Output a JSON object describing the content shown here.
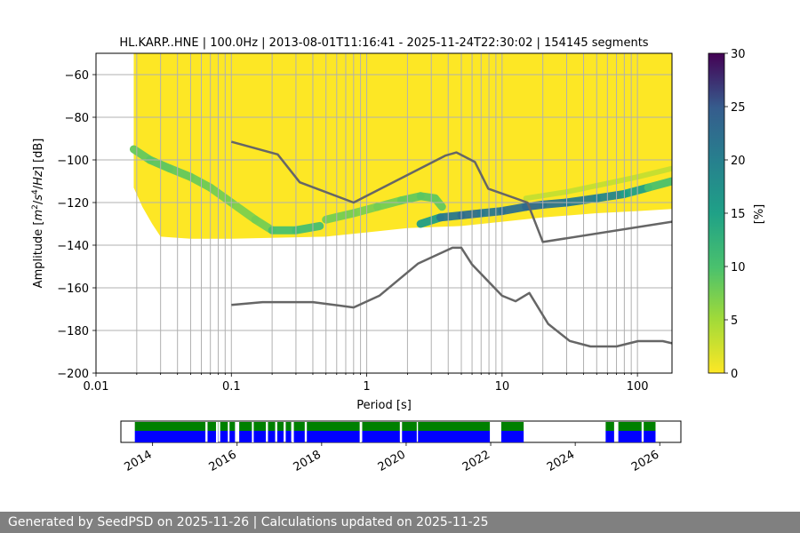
{
  "chart_data": [
    {
      "type": "heatmap",
      "title": "HL.KARP..HNE | 100.0Hz | 2013-08-01T11:16:41 - 2025-11-24T22:30:02 | 154145 segments",
      "xlabel": "Period [s]",
      "ylabel_parts": [
        "Amplitude [",
        "m",
        "2",
        "/",
        "s",
        "4",
        "/",
        "Hz",
        "] [dB]"
      ],
      "x_scale": "log",
      "xlim": [
        0.01,
        180
      ],
      "ylim": [
        -200,
        -50
      ],
      "x_ticks": [
        {
          "value": 0.01,
          "label": "0.01"
        },
        {
          "value": 0.1,
          "label": "0.1"
        },
        {
          "value": 1,
          "label": "1"
        },
        {
          "value": 10,
          "label": "10"
        },
        {
          "value": 100,
          "label": "100"
        }
      ],
      "y_ticks": [
        {
          "value": -60,
          "label": "−60"
        },
        {
          "value": -80,
          "label": "−80"
        },
        {
          "value": -100,
          "label": "−100"
        },
        {
          "value": -120,
          "label": "−120"
        },
        {
          "value": -140,
          "label": "−140"
        },
        {
          "value": -160,
          "label": "−160"
        },
        {
          "value": -180,
          "label": "−180"
        },
        {
          "value": -200,
          "label": "−200"
        }
      ],
      "grid": true,
      "colormap": "viridis_r",
      "colorbar": {
        "label": "[%]",
        "range": [
          0,
          30
        ],
        "ticks": [
          {
            "value": 0,
            "label": "0"
          },
          {
            "value": 5,
            "label": "5"
          },
          {
            "value": 10,
            "label": "10"
          },
          {
            "value": 15,
            "label": "15"
          },
          {
            "value": 20,
            "label": "20"
          },
          {
            "value": 25,
            "label": "25"
          },
          {
            "value": 30,
            "label": "30"
          }
        ]
      },
      "coverage": {
        "period_min": 0.019,
        "upper_limit": -50,
        "lower_edge": [
          [
            0.019,
            -113
          ],
          [
            0.022,
            -122
          ],
          [
            0.026,
            -130
          ],
          [
            0.03,
            -136
          ],
          [
            0.05,
            -137
          ],
          [
            0.1,
            -137
          ],
          [
            0.5,
            -136
          ],
          [
            1,
            -134
          ],
          [
            2,
            -132
          ],
          [
            5,
            -131
          ],
          [
            10,
            -129
          ],
          [
            20,
            -127
          ],
          [
            50,
            -125
          ],
          [
            100,
            -124
          ],
          [
            180,
            -123
          ]
        ]
      },
      "noise_ridge": [
        {
          "x": [
            0.019,
            0.025,
            0.035,
            0.05,
            0.07,
            0.1,
            0.15,
            0.2,
            0.3,
            0.45
          ],
          "y": [
            -95,
            -100,
            -104,
            -108,
            -113,
            -120,
            -128,
            -133,
            -133,
            -131
          ],
          "pct": [
            8,
            9,
            9,
            8,
            8,
            7,
            7,
            8,
            12,
            9
          ]
        },
        {
          "x": [
            0.5,
            0.8,
            1.2,
            1.8,
            2.5,
            3.2,
            3.6
          ],
          "y": [
            -128,
            -125,
            -122,
            -119,
            -117,
            -118,
            -122
          ],
          "pct": [
            8,
            7,
            7,
            8,
            9,
            9,
            8
          ]
        },
        {
          "x": [
            2.5,
            3.5,
            5,
            7,
            10,
            15,
            20,
            30,
            50,
            80,
            120,
            180
          ],
          "y": [
            -130,
            -127,
            -126,
            -125,
            -124,
            -122,
            -121,
            -120,
            -118,
            -116,
            -113,
            -110
          ],
          "pct": [
            12,
            19,
            23,
            22,
            20,
            24,
            22,
            21,
            20,
            18,
            12,
            8
          ]
        },
        {
          "x": [
            15,
            30,
            60,
            100,
            180
          ],
          "y": [
            -118,
            -115,
            -111,
            -108,
            -104
          ],
          "pct": [
            3,
            3,
            3,
            3,
            3
          ]
        }
      ],
      "series": [
        {
          "x": [
            0.1,
            0.22,
            0.32,
            0.8,
            3.8,
            4.6,
            6.3,
            7.9,
            15.4,
            20,
            180
          ],
          "y": [
            -91.5,
            -97.4,
            -110.5,
            -120,
            -98,
            -96.5,
            -101,
            -113.5,
            -120,
            -138.5,
            -129
          ],
          "color": "#666666"
        },
        {
          "x": [
            0.1,
            0.17,
            0.4,
            0.8,
            1.24,
            2.4,
            4.3,
            5,
            6,
            10,
            12.6,
            15.9,
            21.9,
            31.6,
            45,
            70,
            101,
            154,
            180
          ],
          "y": [
            -168,
            -166.7,
            -166.7,
            -169.2,
            -163.7,
            -148.6,
            -141.2,
            -141.2,
            -149.1,
            -163.7,
            -166.3,
            -162.4,
            -176.9,
            -184.9,
            -187.5,
            -187.5,
            -185,
            -185,
            -186
          ],
          "color": "#666666"
        }
      ]
    },
    {
      "type": "timeline",
      "x_ticks": [
        "2014",
        "2016",
        "2018",
        "2020",
        "2022",
        "2024",
        "2026"
      ],
      "tick_years": [
        2014,
        2016,
        2018,
        2020,
        2022,
        2024,
        2026
      ],
      "xlim": [
        2013.25,
        2026.5
      ],
      "colors": {
        "top": "#008000",
        "bottom": "#0000ff"
      },
      "data_periods": [
        [
          2013.58,
          2015.25
        ],
        [
          2015.3,
          2015.55
        ],
        [
          2015.6,
          2015.78
        ],
        [
          2015.82,
          2015.95
        ],
        [
          2016.05,
          2016.68
        ],
        [
          2016.73,
          2016.9
        ],
        [
          2016.95,
          2017.1
        ],
        [
          2017.15,
          2017.28
        ],
        [
          2017.33,
          2017.6
        ],
        [
          2017.65,
          2018.93
        ],
        [
          2018.96,
          2019.85
        ],
        [
          2019.88,
          2020.25
        ],
        [
          2020.28,
          2021.98
        ],
        [
          2022.25,
          2022.78
        ],
        [
          2024.72,
          2024.92
        ],
        [
          2025.02,
          2025.57
        ],
        [
          2025.62,
          2025.9
        ]
      ],
      "gaps": [
        2015.5,
        2016.35,
        2017.3,
        2018.9,
        2019.86
      ]
    }
  ],
  "footer": {
    "text": "Generated by SeedPSD on 2025-11-26 | Calculations updated on 2025-11-25"
  }
}
